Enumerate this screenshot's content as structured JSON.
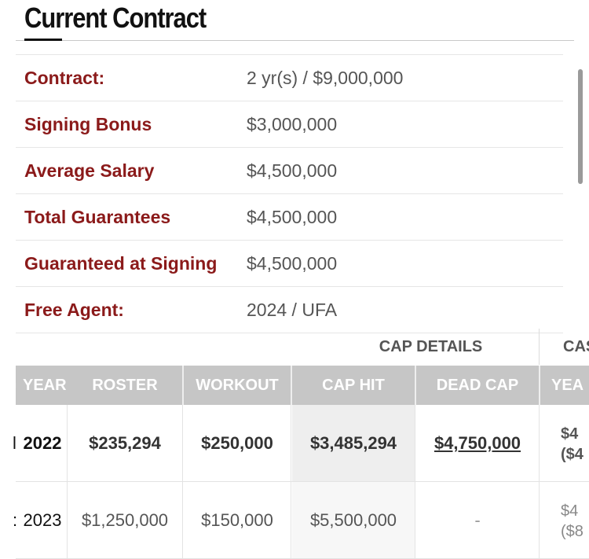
{
  "section_title": "Current Contract",
  "summary": [
    {
      "label": "Contract:",
      "value": "2 yr(s) / $9,000,000"
    },
    {
      "label": "Signing Bonus",
      "value": "$3,000,000"
    },
    {
      "label": "Average Salary",
      "value": "$4,500,000"
    },
    {
      "label": "Total Guarantees",
      "value": "$4,500,000"
    },
    {
      "label": "Guaranteed at Signing",
      "value": "$4,500,000"
    },
    {
      "label": "Free Agent:",
      "value": "2024 / UFA"
    }
  ],
  "cap_table": {
    "group_title": "CAP DETAILS",
    "group_next_partial": "CAS",
    "columns": {
      "year": "YEAR",
      "roster": "ROSTER",
      "workout": "WORKOUT",
      "cap_hit": "CAP HIT",
      "dead_cap": "DEAD CAP",
      "next_partial": "YEA"
    },
    "rows": [
      {
        "year_prefix": "l",
        "year": "2022",
        "roster": "$235,294",
        "workout": "$250,000",
        "cap_hit": "$3,485,294",
        "dead_cap": "$4,750,000",
        "trail_top": "$4",
        "trail_bottom": "($4"
      },
      {
        "year_prefix": ":",
        "year": "2023",
        "roster": "$1,250,000",
        "workout": "$150,000",
        "cap_hit": "$5,500,000",
        "dead_cap": "-",
        "trail_top": "$4",
        "trail_bottom": "($8"
      }
    ]
  },
  "colors": {
    "label_red": "#8b1a1a",
    "header_gray": "#c6c6c6",
    "cap_hit_shade": "#eeeeee"
  }
}
